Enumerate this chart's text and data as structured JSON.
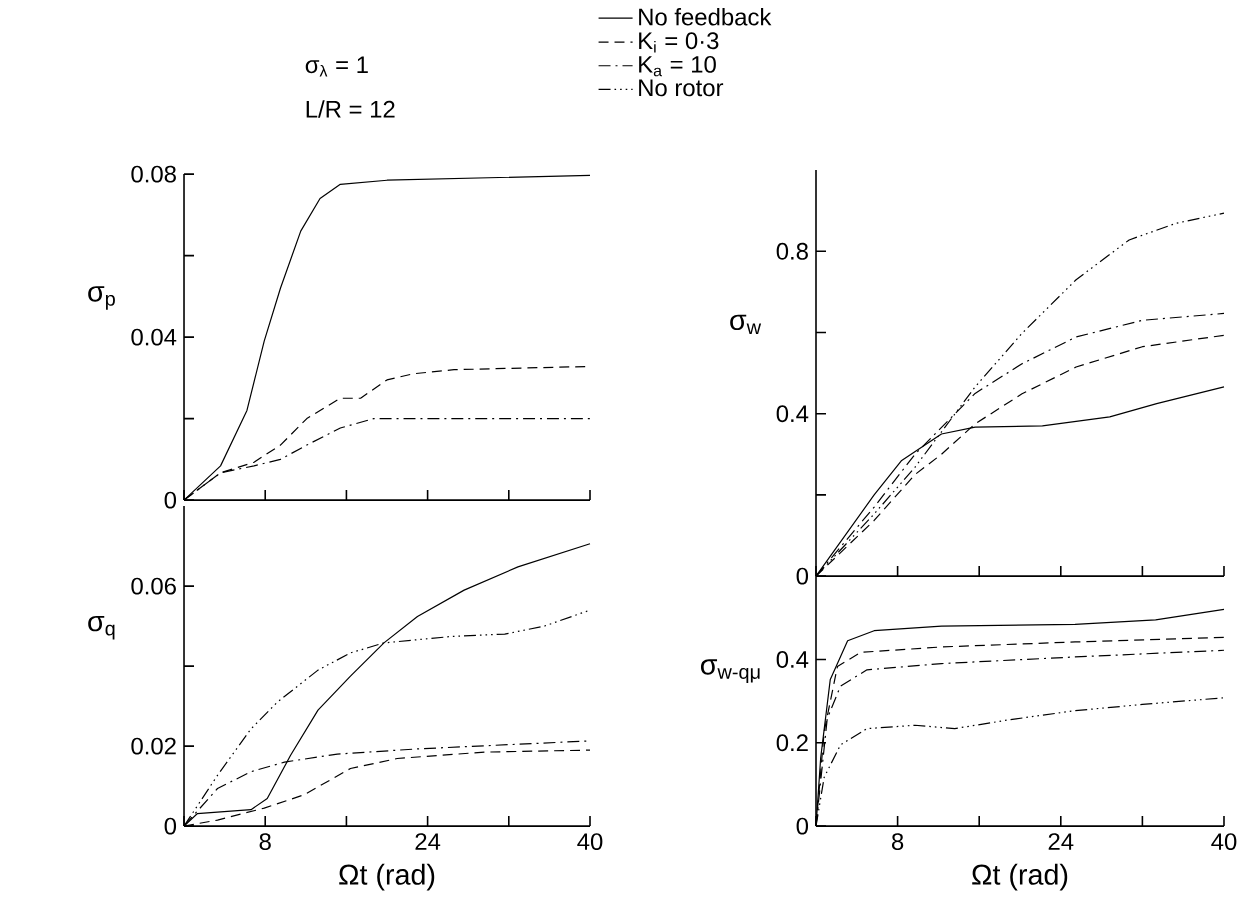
{
  "chart_data": [
    {
      "type": "line",
      "ylabel": "σ$_{p}$",
      "annotations": [
        "σ$_{λ}$ = 1",
        "L/R = 12"
      ],
      "tick_labels": "y",
      "xlim": [
        0,
        40
      ],
      "ylim": [
        0,
        0.08
      ],
      "xticks": [
        {
          "value": 0,
          "label": null
        },
        8,
        {
          "value": 16,
          "label": null
        },
        24,
        {
          "value": 32,
          "label": null
        },
        40
      ],
      "yticks": [
        0,
        {
          "value": 0.02,
          "label": null
        },
        0.04,
        {
          "value": 0.06,
          "label": null
        },
        0.08
      ],
      "series": [
        {
          "color": "#000000",
          "line_style": "solid",
          "x": [
            0,
            3.6,
            6.2,
            7.9,
            9.5,
            11.5,
            13.4,
            15.4,
            20,
            40
          ],
          "values": [
            0,
            0.0084,
            0.022,
            0.039,
            0.052,
            0.066,
            0.074,
            0.0775,
            0.0785,
            0.0797
          ]
        },
        {
          "color": "#000000",
          "line_style": "dashed",
          "x": [
            0,
            3.6,
            6.9,
            9.5,
            12.1,
            15.4,
            17.4,
            20,
            22.6,
            26.6,
            40
          ],
          "values": [
            0,
            0.0067,
            0.0093,
            0.0135,
            0.02,
            0.025,
            0.025,
            0.0295,
            0.031,
            0.032,
            0.0328
          ]
        },
        {
          "color": "#000000",
          "line_style": "dashdot",
          "x": [
            0,
            3.6,
            6.9,
            9.5,
            12.1,
            15.4,
            18.7,
            23.3,
            40
          ],
          "values": [
            0,
            0.0067,
            0.0084,
            0.01,
            0.0135,
            0.0177,
            0.02,
            0.02,
            0.02
          ]
        }
      ]
    },
    {
      "type": "line",
      "xlabel": "Ωt (rad)",
      "ylabel": "σ$_{q}$",
      "xlim": [
        0,
        40
      ],
      "ylim": [
        0,
        0.08
      ],
      "xticks": [
        {
          "value": 0,
          "label": null
        },
        8,
        {
          "value": 16,
          "label": null
        },
        24,
        {
          "value": 32,
          "label": null
        },
        40
      ],
      "yticks": [
        0,
        0.02,
        {
          "value": 0.04,
          "label": null
        },
        0.06
      ],
      "series": [
        {
          "color": "#000000",
          "line_style": "solid",
          "x": [
            0,
            1.3,
            6.6,
            8.2,
            10.5,
            13.2,
            16.4,
            19.7,
            23,
            27.6,
            32.9,
            40
          ],
          "values": [
            0,
            0.0031,
            0.0041,
            0.0069,
            0.0177,
            0.029,
            0.0375,
            0.0458,
            0.0524,
            0.059,
            0.0648,
            0.0706
          ]
        },
        {
          "color": "#000000",
          "line_style": "dashed",
          "x": [
            0,
            3.3,
            7.9,
            11.8,
            16.4,
            21,
            29.6,
            40
          ],
          "values": [
            0,
            0.0015,
            0.0045,
            0.0078,
            0.0144,
            0.0169,
            0.0185,
            0.019
          ]
        },
        {
          "color": "#000000",
          "line_style": "dashdot",
          "x": [
            0,
            3.3,
            6.6,
            9.9,
            15.1,
            23,
            40
          ],
          "values": [
            0,
            0.0094,
            0.0136,
            0.016,
            0.018,
            0.0193,
            0.0213
          ]
        },
        {
          "color": "#000000",
          "line_style": "dashdotdot",
          "x": [
            0,
            3.3,
            6.6,
            9.2,
            13.2,
            16.4,
            19.7,
            26.3,
            31.6,
            35.5,
            40
          ],
          "values": [
            0,
            0.0127,
            0.0243,
            0.031,
            0.039,
            0.0433,
            0.0458,
            0.0474,
            0.048,
            0.05,
            0.054
          ]
        }
      ]
    },
    {
      "type": "line",
      "ylabel": "σ$_{w}$",
      "legend": "top",
      "tick_labels": "y",
      "xlim": [
        0,
        40
      ],
      "ylim": [
        0,
        1.0
      ],
      "xticks": [
        {
          "value": 0,
          "label": null
        },
        8,
        {
          "value": 16,
          "label": null
        },
        24,
        {
          "value": 32,
          "label": null
        },
        40
      ],
      "yticks": [
        0,
        {
          "value": 0.2,
          "label": null
        },
        0.4,
        {
          "value": 0.6,
          "label": null
        },
        0.8
      ],
      "series": [
        {
          "name": "No feedback",
          "color": "#000000",
          "line_style": "solid",
          "x": [
            0,
            5.7,
            8.4,
            12.3,
            15.6,
            22.2,
            28.8,
            33.4,
            40
          ],
          "values": [
            0,
            0.2,
            0.285,
            0.35,
            0.367,
            0.37,
            0.392,
            0.425,
            0.466
          ]
        },
        {
          "name": "K$_{i}$ = 0·3",
          "color": "#000000",
          "line_style": "dashed",
          "x": [
            0,
            5.7,
            9.7,
            12.3,
            15.6,
            20.2,
            25.5,
            32,
            40
          ],
          "values": [
            0,
            0.137,
            0.25,
            0.3,
            0.375,
            0.449,
            0.515,
            0.565,
            0.593
          ]
        },
        {
          "name": "K$_{a}$ = 10",
          "color": "#000000",
          "line_style": "dashdot",
          "x": [
            0,
            5.7,
            9.7,
            15.6,
            20.2,
            25.5,
            32,
            40
          ],
          "values": [
            0,
            0.17,
            0.3,
            0.45,
            0.523,
            0.589,
            0.63,
            0.647
          ]
        },
        {
          "name": "No rotor",
          "color": "#000000",
          "line_style": "dashdotdot",
          "x": [
            0,
            5.7,
            9.7,
            15.6,
            20.2,
            25.5,
            30.7,
            35.3,
            40
          ],
          "values": [
            0,
            0.153,
            0.268,
            0.466,
            0.598,
            0.73,
            0.828,
            0.869,
            0.894
          ]
        }
      ]
    },
    {
      "type": "line",
      "xlabel": "Ωt (rad)",
      "ylabel": "σ$_{w-qμ}$",
      "xlim": [
        0,
        40
      ],
      "ylim": [
        0,
        0.6
      ],
      "xticks": [
        {
          "value": 0,
          "label": null
        },
        8,
        {
          "value": 16,
          "label": null
        },
        24,
        {
          "value": 32,
          "label": null
        },
        40
      ],
      "yticks": [
        0,
        0.2,
        0.4
      ],
      "series": [
        {
          "color": "#000000",
          "line_style": "solid",
          "x": [
            0,
            0.46,
            1.4,
            3.1,
            5.7,
            12.3,
            25.4,
            33.3,
            40
          ],
          "values": [
            0,
            0.164,
            0.352,
            0.445,
            0.469,
            0.48,
            0.484,
            0.495,
            0.52
          ]
        },
        {
          "color": "#000000",
          "line_style": "dashed",
          "x": [
            0,
            0.8,
            2.1,
            4.4,
            12.3,
            25.4,
            40
          ],
          "values": [
            0,
            0.227,
            0.383,
            0.417,
            0.43,
            0.442,
            0.453
          ]
        },
        {
          "color": "#000000",
          "line_style": "dashdot",
          "x": [
            0,
            1.1,
            2.4,
            5,
            12.3,
            25.4,
            40
          ],
          "values": [
            0,
            0.258,
            0.336,
            0.375,
            0.39,
            0.406,
            0.422
          ]
        },
        {
          "color": "#000000",
          "line_style": "dashdotdot",
          "x": [
            0,
            0.8,
            2.4,
            5,
            9.7,
            13.6,
            18.9,
            25.4,
            32,
            40
          ],
          "values": [
            0,
            0.117,
            0.195,
            0.234,
            0.242,
            0.234,
            0.255,
            0.277,
            0.292,
            0.308
          ]
        }
      ]
    }
  ]
}
